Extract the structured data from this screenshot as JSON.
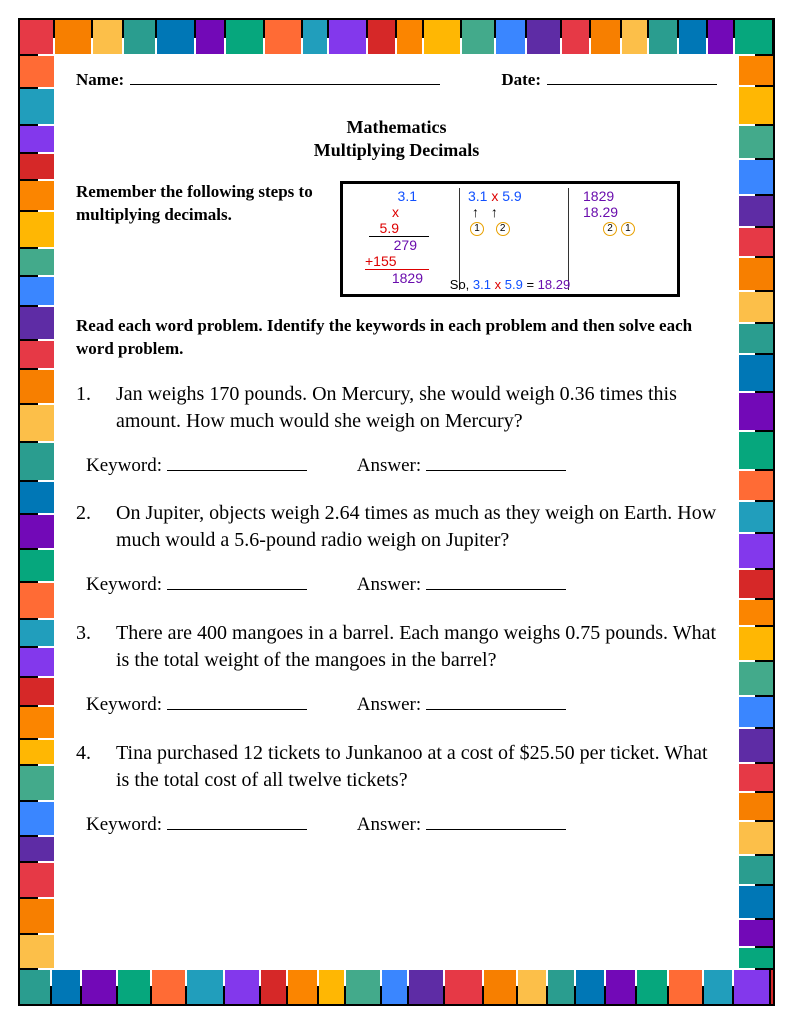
{
  "border": {
    "colors": [
      "#e63946",
      "#f77f00",
      "#fcbf49",
      "#2a9d8f",
      "#0077b6",
      "#7209b7",
      "#06a77d",
      "#ff6b35",
      "#219ebc",
      "#8338ec",
      "#d62828",
      "#fb8500",
      "#ffb703",
      "#43aa8b",
      "#3a86ff",
      "#5e2ca5"
    ],
    "tile_size": 30,
    "outer_margin": 18,
    "thickness": 38
  },
  "header": {
    "name_label": "Name:",
    "date_label": "Date:"
  },
  "title": {
    "line1": "Mathematics",
    "line2": "Multiplying Decimals"
  },
  "steps": {
    "text": "Remember the following steps to multiplying decimals."
  },
  "example": {
    "col1": {
      "a": "3.1",
      "b": "x 5.9",
      "c": "279",
      "d": "+155",
      "e": "1829"
    },
    "col2": {
      "expr": "3.1 x 5.9",
      "arrows": "↑    ↑",
      "circles": "①   ②"
    },
    "col3": {
      "a": "1829",
      "b": "18.29",
      "circles": "② ①"
    },
    "bottom": "So, 3.1 x 5.9 = 18.29"
  },
  "instructions": "Read each word problem. Identify the keywords in each problem and then solve each word problem.",
  "labels": {
    "keyword": "Keyword:",
    "answer": "Answer:"
  },
  "problems": [
    {
      "n": "1.",
      "text": "Jan weighs 170 pounds. On Mercury, she would weigh 0.36 times this amount. How much would she weigh on Mercury?"
    },
    {
      "n": "2.",
      "text": "On Jupiter, objects weigh 2.64 times as much as they weigh on Earth. How much would a 5.6-pound radio weigh on Jupiter?"
    },
    {
      "n": "3.",
      "text": "There are 400 mangoes in a barrel. Each mango weighs 0.75 pounds. What is the total weight of the mangoes in the barrel?"
    },
    {
      "n": "4.",
      "text": "Tina purchased 12 tickets to Junkanoo at a cost of $25.50 per ticket. What is the total cost of all twelve tickets?"
    }
  ]
}
